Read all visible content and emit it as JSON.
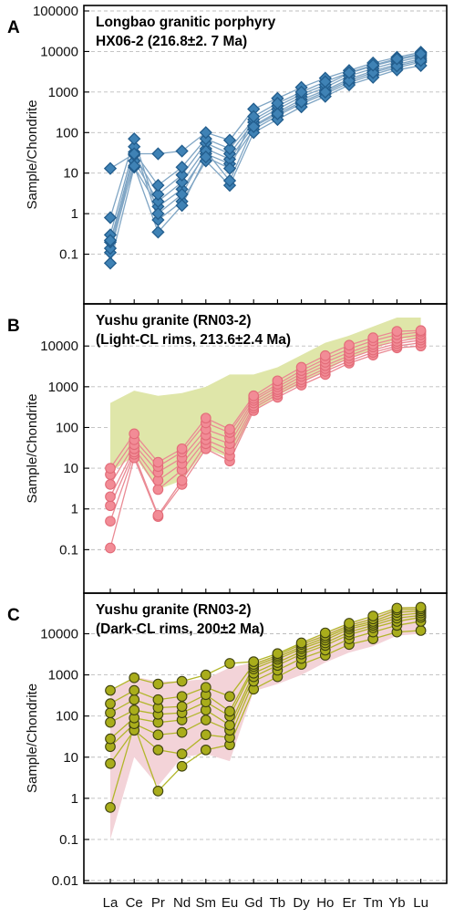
{
  "x_labels": [
    "La",
    "Ce",
    "Pr",
    "Nd",
    "Sm",
    "Eu",
    "Gd",
    "Tb",
    "Dy",
    "Ho",
    "Er",
    "Tm",
    "Yb",
    "Lu"
  ],
  "colors": {
    "blue_fill": "#3f82b5",
    "blue_stroke": "#225d8d",
    "blue_line": "#7fa5c4",
    "pink_fill": "#f28c96",
    "pink_stroke": "#e26b78",
    "pink_line": "#ea8a94",
    "olive_fill": "#a9ad1b",
    "olive_stroke": "#3f4210",
    "olive_line": "#b2b62a",
    "green_band": "#dfe6a9",
    "pink_band": "#f3d3d8"
  },
  "chart_data": [
    {
      "type": "line",
      "panel": "A",
      "title_lines": [
        "Longbao granitic porphyry",
        "HX06-2 (216.8±2. 7 Ma)"
      ],
      "ylabel": "Sample/Chondrite",
      "y_scale": "log",
      "ylim": [
        0.01,
        100000
      ],
      "yticks": [
        0.1,
        1,
        10,
        100,
        1000,
        10000,
        100000
      ],
      "ytick_labels": [
        "0.1",
        "1",
        "10",
        "100",
        "1000",
        "10000",
        "100000"
      ],
      "marker": "diamond",
      "series": [
        {
          "values": [
            0.06,
            14,
            1.5,
            4,
            30,
            17,
            120,
            260,
            520,
            900,
            1700,
            2700,
            4000,
            5500
          ]
        },
        {
          "values": [
            0.11,
            20,
            2.0,
            6,
            40,
            22,
            150,
            320,
            650,
            1100,
            2100,
            3300,
            4800,
            6600
          ]
        },
        {
          "values": [
            0.14,
            28,
            3.0,
            9,
            55,
            30,
            180,
            380,
            760,
            1300,
            2500,
            3800,
            5500,
            7400
          ]
        },
        {
          "values": [
            0.2,
            33,
            5.0,
            14,
            70,
            40,
            210,
            450,
            880,
            1500,
            2900,
            4400,
            6200,
            8200
          ]
        },
        {
          "values": [
            0.3,
            45,
            0.7,
            2,
            20,
            5,
            100,
            210,
            430,
            780,
            1500,
            2300,
            3500,
            4500
          ]
        },
        {
          "values": [
            0.8,
            70,
            1.0,
            3,
            35,
            6.5,
            140,
            290,
            570,
            1000,
            1900,
            3000,
            4400,
            6000
          ]
        },
        {
          "values": [
            13,
            30,
            30,
            35,
            100,
            65,
            380,
            700,
            1300,
            2200,
            3400,
            5200,
            7200,
            9600
          ]
        },
        {
          "values": [
            0.22,
            15,
            0.35,
            1.6,
            25,
            13,
            250,
            530,
            1000,
            1800,
            3000,
            4600,
            6600,
            8800
          ]
        }
      ]
    },
    {
      "type": "line",
      "panel": "B",
      "title_lines": [
        "Yushu granite (RN03-2)",
        "(Light-CL rims, 213.6±2.4 Ma)"
      ],
      "ylabel": "Sample/Chondrite",
      "y_scale": "log",
      "ylim": [
        0.01,
        50000
      ],
      "yticks": [
        0.1,
        1,
        10,
        100,
        1000,
        10000
      ],
      "ytick_labels": [
        "0.1",
        "1",
        "10",
        "100",
        "1000",
        "10000"
      ],
      "marker": "circle",
      "band": {
        "upper": [
          400,
          800,
          600,
          700,
          1000,
          2000,
          2000,
          3000,
          6000,
          12000,
          18000,
          30000,
          50000,
          50000
        ],
        "lower": [
          8,
          20,
          3,
          5,
          30,
          18,
          250,
          600,
          1200,
          2500,
          5000,
          8000,
          15000,
          15000
        ]
      },
      "series": [
        {
          "values": [
            0.11,
            18,
            0.65,
            4,
            30,
            15,
            260,
            550,
            1100,
            2000,
            3800,
            6000,
            9000,
            10000
          ]
        },
        {
          "values": [
            0.5,
            22,
            0.7,
            5,
            40,
            20,
            300,
            650,
            1300,
            2400,
            4300,
            7000,
            10000,
            12000
          ]
        },
        {
          "values": [
            1.2,
            25,
            3,
            9,
            50,
            28,
            340,
            750,
            1500,
            2800,
            5000,
            8000,
            11500,
            14000
          ]
        },
        {
          "values": [
            2,
            30,
            5,
            13,
            65,
            40,
            400,
            850,
            1800,
            3300,
            5800,
            9500,
            13000,
            16000
          ]
        },
        {
          "values": [
            4,
            38,
            8,
            18,
            90,
            55,
            460,
            1000,
            2100,
            4000,
            7000,
            11000,
            15500,
            19000
          ]
        },
        {
          "values": [
            7,
            50,
            11,
            25,
            130,
            75,
            520,
            1150,
            2500,
            4800,
            8500,
            13500,
            19000,
            22000
          ]
        },
        {
          "values": [
            10,
            70,
            14,
            30,
            170,
            90,
            600,
            1400,
            3000,
            5800,
            10500,
            16000,
            23000,
            24000
          ]
        }
      ]
    },
    {
      "type": "line",
      "panel": "C",
      "title_lines": [
        "Yushu granite (RN03-2)",
        "(Dark-CL rims, 200±2 Ma)"
      ],
      "ylabel": "Sample/Chondrite",
      "y_scale": "log",
      "ylim": [
        0.01,
        50000
      ],
      "yticks": [
        0.01,
        0.1,
        1,
        10,
        100,
        1000,
        10000
      ],
      "ytick_labels": [
        "0.01",
        "0.1",
        "1",
        "10",
        "100",
        "1000",
        "10000"
      ],
      "marker": "circle",
      "band": {
        "upper": [
          400,
          900,
          700,
          700,
          800,
          1500,
          2000,
          3000,
          6000,
          10000,
          18000,
          25000,
          45000,
          45000
        ],
        "lower": [
          0.1,
          10,
          2,
          10,
          12,
          8,
          400,
          600,
          1000,
          2000,
          3500,
          5000,
          9000,
          10000
        ]
      },
      "series": [
        {
          "values": [
            0.6,
            60,
            1.5,
            6,
            15,
            20,
            450,
            900,
            1800,
            3000,
            5500,
            7500,
            11000,
            12000
          ]
        },
        {
          "values": [
            7,
            45,
            15,
            12,
            35,
            30,
            700,
            1300,
            2500,
            4000,
            7500,
            11000,
            16000,
            20000
          ]
        },
        {
          "values": [
            18,
            65,
            35,
            40,
            80,
            45,
            900,
            1700,
            3200,
            5200,
            9500,
            14000,
            20000,
            25000
          ]
        },
        {
          "values": [
            28,
            90,
            70,
            80,
            140,
            60,
            1100,
            2000,
            3700,
            6000,
            11000,
            16000,
            24000,
            28000
          ]
        },
        {
          "values": [
            70,
            140,
            110,
            120,
            220,
            100,
            1400,
            2400,
            4300,
            7000,
            13000,
            18000,
            28000,
            32000
          ]
        },
        {
          "values": [
            120,
            250,
            160,
            170,
            330,
            130,
            1600,
            2700,
            4800,
            8000,
            14500,
            20000,
            33000,
            36000
          ]
        },
        {
          "values": [
            200,
            420,
            250,
            300,
            500,
            300,
            1800,
            3000,
            5500,
            9000,
            16000,
            23000,
            38000,
            40000
          ]
        },
        {
          "values": [
            420,
            850,
            600,
            700,
            1000,
            1900,
            2100,
            3300,
            6000,
            10500,
            18000,
            27000,
            42000,
            44000
          ]
        }
      ]
    }
  ]
}
